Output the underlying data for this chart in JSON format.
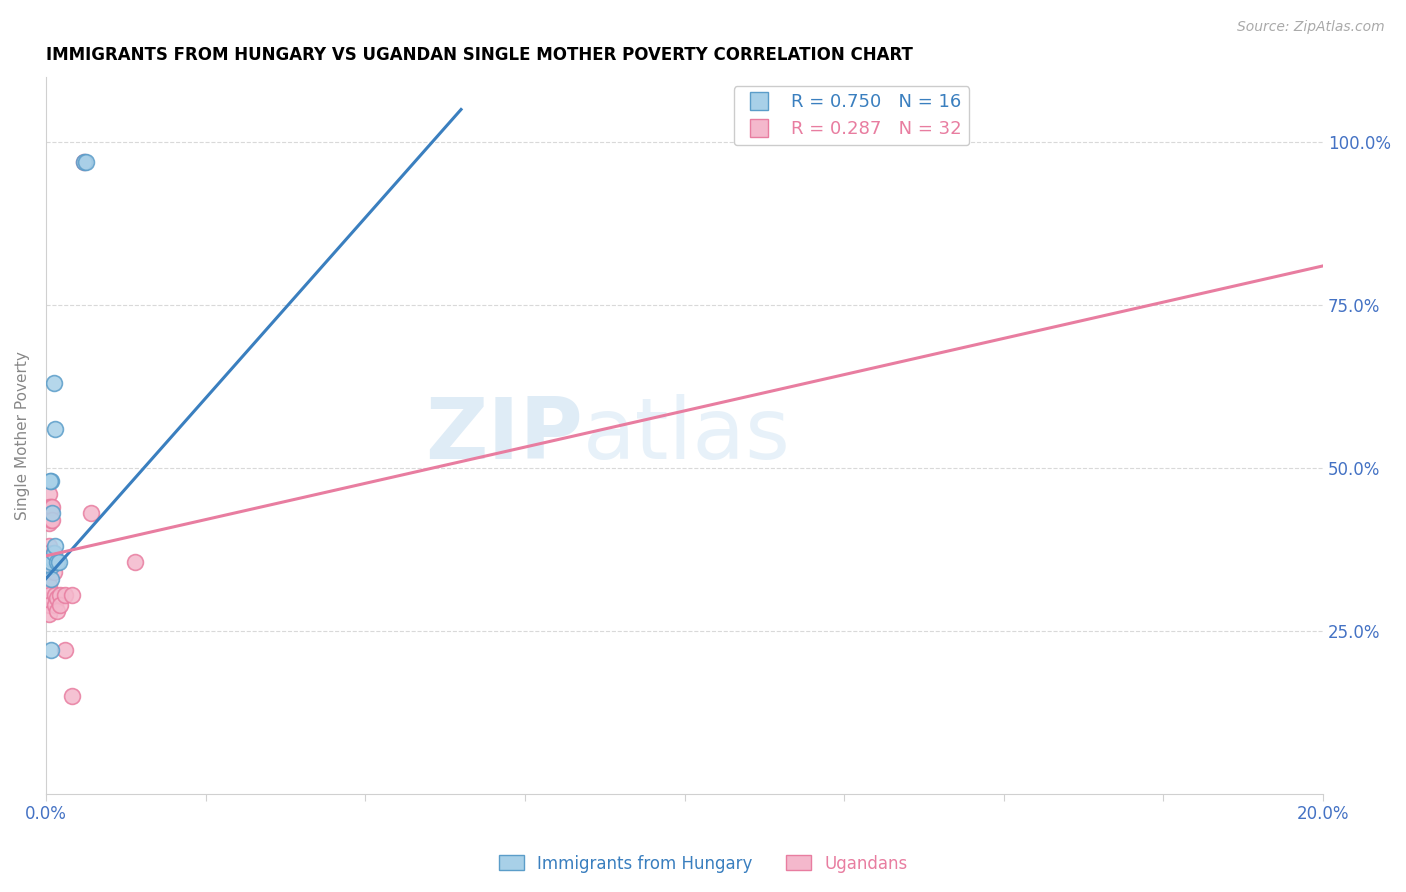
{
  "title": "IMMIGRANTS FROM HUNGARY VS UGANDAN SINGLE MOTHER POVERTY CORRELATION CHART",
  "source": "Source: ZipAtlas.com",
  "ylabel": "Single Mother Poverty",
  "legend_blue_r": "R = 0.750",
  "legend_blue_n": "N = 16",
  "legend_pink_r": "R = 0.287",
  "legend_pink_n": "N = 32",
  "blue_scatter_color": "#a8d0e8",
  "blue_edge_color": "#5b9dc9",
  "pink_scatter_color": "#f4b8cc",
  "pink_edge_color": "#e87da0",
  "blue_line_color": "#3a7fbf",
  "pink_line_color": "#e87da0",
  "blue_points": [
    [
      0.0008,
      0.48
    ],
    [
      0.0012,
      0.63
    ],
    [
      0.0014,
      0.56
    ],
    [
      0.001,
      0.43
    ],
    [
      0.0006,
      0.48
    ],
    [
      0.0008,
      0.35
    ],
    [
      0.001,
      0.36
    ],
    [
      0.0008,
      0.33
    ],
    [
      0.0008,
      0.355
    ],
    [
      0.0012,
      0.37
    ],
    [
      0.0014,
      0.38
    ],
    [
      0.0018,
      0.355
    ],
    [
      0.002,
      0.355
    ],
    [
      0.0008,
      0.22
    ],
    [
      0.006,
      0.97
    ],
    [
      0.0062,
      0.97
    ]
  ],
  "pink_points": [
    [
      0.0004,
      0.46
    ],
    [
      0.0004,
      0.44
    ],
    [
      0.0004,
      0.43
    ],
    [
      0.0004,
      0.415
    ],
    [
      0.0004,
      0.38
    ],
    [
      0.0004,
      0.37
    ],
    [
      0.0004,
      0.355
    ],
    [
      0.0004,
      0.34
    ],
    [
      0.0004,
      0.32
    ],
    [
      0.0004,
      0.305
    ],
    [
      0.0004,
      0.29
    ],
    [
      0.0004,
      0.275
    ],
    [
      0.0008,
      0.44
    ],
    [
      0.0008,
      0.42
    ],
    [
      0.001,
      0.44
    ],
    [
      0.001,
      0.42
    ],
    [
      0.0012,
      0.37
    ],
    [
      0.0012,
      0.355
    ],
    [
      0.0012,
      0.34
    ],
    [
      0.0014,
      0.305
    ],
    [
      0.0014,
      0.29
    ],
    [
      0.0018,
      0.3
    ],
    [
      0.0018,
      0.28
    ],
    [
      0.0022,
      0.305
    ],
    [
      0.0022,
      0.29
    ],
    [
      0.003,
      0.305
    ],
    [
      0.003,
      0.22
    ],
    [
      0.004,
      0.305
    ],
    [
      0.004,
      0.15
    ],
    [
      0.007,
      0.43
    ],
    [
      0.014,
      0.355
    ],
    [
      0.006,
      0.97
    ]
  ],
  "xlim": [
    0.0,
    0.2
  ],
  "ylim": [
    0.0,
    1.1
  ],
  "blue_line_x": [
    0.0,
    0.065
  ],
  "blue_line_y": [
    0.33,
    1.05
  ],
  "pink_line_x": [
    0.0,
    0.2
  ],
  "pink_line_y": [
    0.365,
    0.81
  ],
  "yticks": [
    0.25,
    0.5,
    0.75,
    1.0
  ],
  "xticks": [
    0.0,
    0.025,
    0.05,
    0.075,
    0.1,
    0.125,
    0.15,
    0.175,
    0.2
  ],
  "tick_color": "#4472c4",
  "watermark_text": "ZIP",
  "watermark_text2": "atlas",
  "grid_color": "#d0d0d0"
}
